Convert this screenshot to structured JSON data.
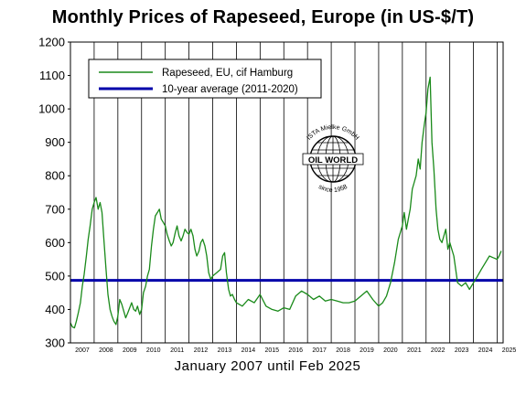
{
  "chart_data": {
    "type": "line",
    "title": "Monthly Prices of Rapeseed, Europe (in US-$/T)",
    "subtitle": "January 2007 until Feb 2025",
    "xlabel": "",
    "ylabel": "",
    "ylim": [
      300,
      1200
    ],
    "xlim": [
      2007.0,
      2025.25
    ],
    "y_ticks": [
      "1200",
      "1100",
      "1000",
      "900",
      "800",
      "700",
      "600",
      "500",
      "400",
      "300"
    ],
    "x_ticks": [
      "2007",
      "2008",
      "2009",
      "2010",
      "2011",
      "2012",
      "2013",
      "2014",
      "2015",
      "2016",
      "2017",
      "2018",
      "2019",
      "2020",
      "2021",
      "2022",
      "2023",
      "2024",
      "2025"
    ],
    "grid": "vertical lines at year boundaries",
    "legend_position": "top-left",
    "series": [
      {
        "name": "Rapeseed, EU, cif Hamburg",
        "color": "#1a8a1a",
        "x": [
          2007.0,
          2007.08,
          2007.17,
          2007.25,
          2007.33,
          2007.42,
          2007.5,
          2007.58,
          2007.67,
          2007.75,
          2007.83,
          2007.92,
          2008.0,
          2008.08,
          2008.17,
          2008.25,
          2008.33,
          2008.42,
          2008.5,
          2008.58,
          2008.67,
          2008.75,
          2008.83,
          2008.92,
          2009.0,
          2009.08,
          2009.17,
          2009.25,
          2009.33,
          2009.42,
          2009.5,
          2009.58,
          2009.67,
          2009.75,
          2009.83,
          2009.92,
          2010.0,
          2010.08,
          2010.17,
          2010.25,
          2010.33,
          2010.42,
          2010.5,
          2010.58,
          2010.67,
          2010.75,
          2010.83,
          2010.92,
          2011.0,
          2011.08,
          2011.17,
          2011.25,
          2011.33,
          2011.42,
          2011.5,
          2011.58,
          2011.67,
          2011.75,
          2011.83,
          2011.92,
          2012.0,
          2012.08,
          2012.17,
          2012.25,
          2012.33,
          2012.42,
          2012.5,
          2012.58,
          2012.67,
          2012.75,
          2012.83,
          2012.92,
          2013.0,
          2013.08,
          2013.17,
          2013.25,
          2013.33,
          2013.42,
          2013.5,
          2013.58,
          2013.67,
          2013.75,
          2013.83,
          2013.92,
          2014.0,
          2014.25,
          2014.5,
          2014.75,
          2015.0,
          2015.25,
          2015.5,
          2015.75,
          2016.0,
          2016.25,
          2016.5,
          2016.75,
          2017.0,
          2017.25,
          2017.5,
          2017.75,
          2018.0,
          2018.25,
          2018.5,
          2018.75,
          2019.0,
          2019.25,
          2019.5,
          2019.75,
          2020.0,
          2020.17,
          2020.33,
          2020.5,
          2020.67,
          2020.83,
          2021.0,
          2021.08,
          2021.17,
          2021.25,
          2021.33,
          2021.42,
          2021.5,
          2021.58,
          2021.67,
          2021.75,
          2021.83,
          2021.92,
          2022.0,
          2022.08,
          2022.17,
          2022.25,
          2022.33,
          2022.42,
          2022.5,
          2022.58,
          2022.67,
          2022.75,
          2022.83,
          2022.92,
          2023.0,
          2023.17,
          2023.33,
          2023.5,
          2023.67,
          2023.83,
          2024.0,
          2024.17,
          2024.33,
          2024.5,
          2024.67,
          2024.83,
          2025.0,
          2025.08,
          2025.17
        ],
        "y": [
          360,
          348,
          345,
          365,
          390,
          420,
          470,
          505,
          560,
          610,
          650,
          700,
          720,
          735,
          700,
          720,
          690,
          600,
          520,
          445,
          400,
          380,
          365,
          355,
          380,
          430,
          415,
          395,
          375,
          390,
          405,
          420,
          400,
          395,
          410,
          385,
          400,
          450,
          470,
          500,
          520,
          590,
          640,
          680,
          690,
          700,
          670,
          660,
          650,
          625,
          605,
          590,
          600,
          630,
          650,
          620,
          605,
          620,
          640,
          630,
          625,
          640,
          620,
          580,
          560,
          575,
          600,
          610,
          590,
          560,
          510,
          490,
          500,
          505,
          510,
          515,
          520,
          560,
          570,
          510,
          460,
          440,
          445,
          430,
          420,
          410,
          430,
          420,
          445,
          410,
          400,
          395,
          405,
          400,
          440,
          455,
          445,
          430,
          440,
          425,
          430,
          425,
          420,
          420,
          425,
          440,
          455,
          430,
          410,
          420,
          440,
          480,
          540,
          610,
          650,
          690,
          640,
          670,
          700,
          760,
          780,
          800,
          850,
          820,
          900,
          950,
          990,
          1060,
          1095,
          900,
          820,
          700,
          640,
          610,
          600,
          620,
          640,
          580,
          600,
          560,
          480,
          470,
          480,
          460,
          480,
          500,
          520,
          540,
          560,
          555,
          550,
          560,
          575
        ]
      },
      {
        "name": "10-year average (2011-2020)",
        "color": "#0000aa",
        "value": 487
      }
    ],
    "logo": {
      "ring_text": "ISTA Mielke GmbH",
      "center_text": "OIL WORLD",
      "bottom_text": "since 1958"
    }
  }
}
